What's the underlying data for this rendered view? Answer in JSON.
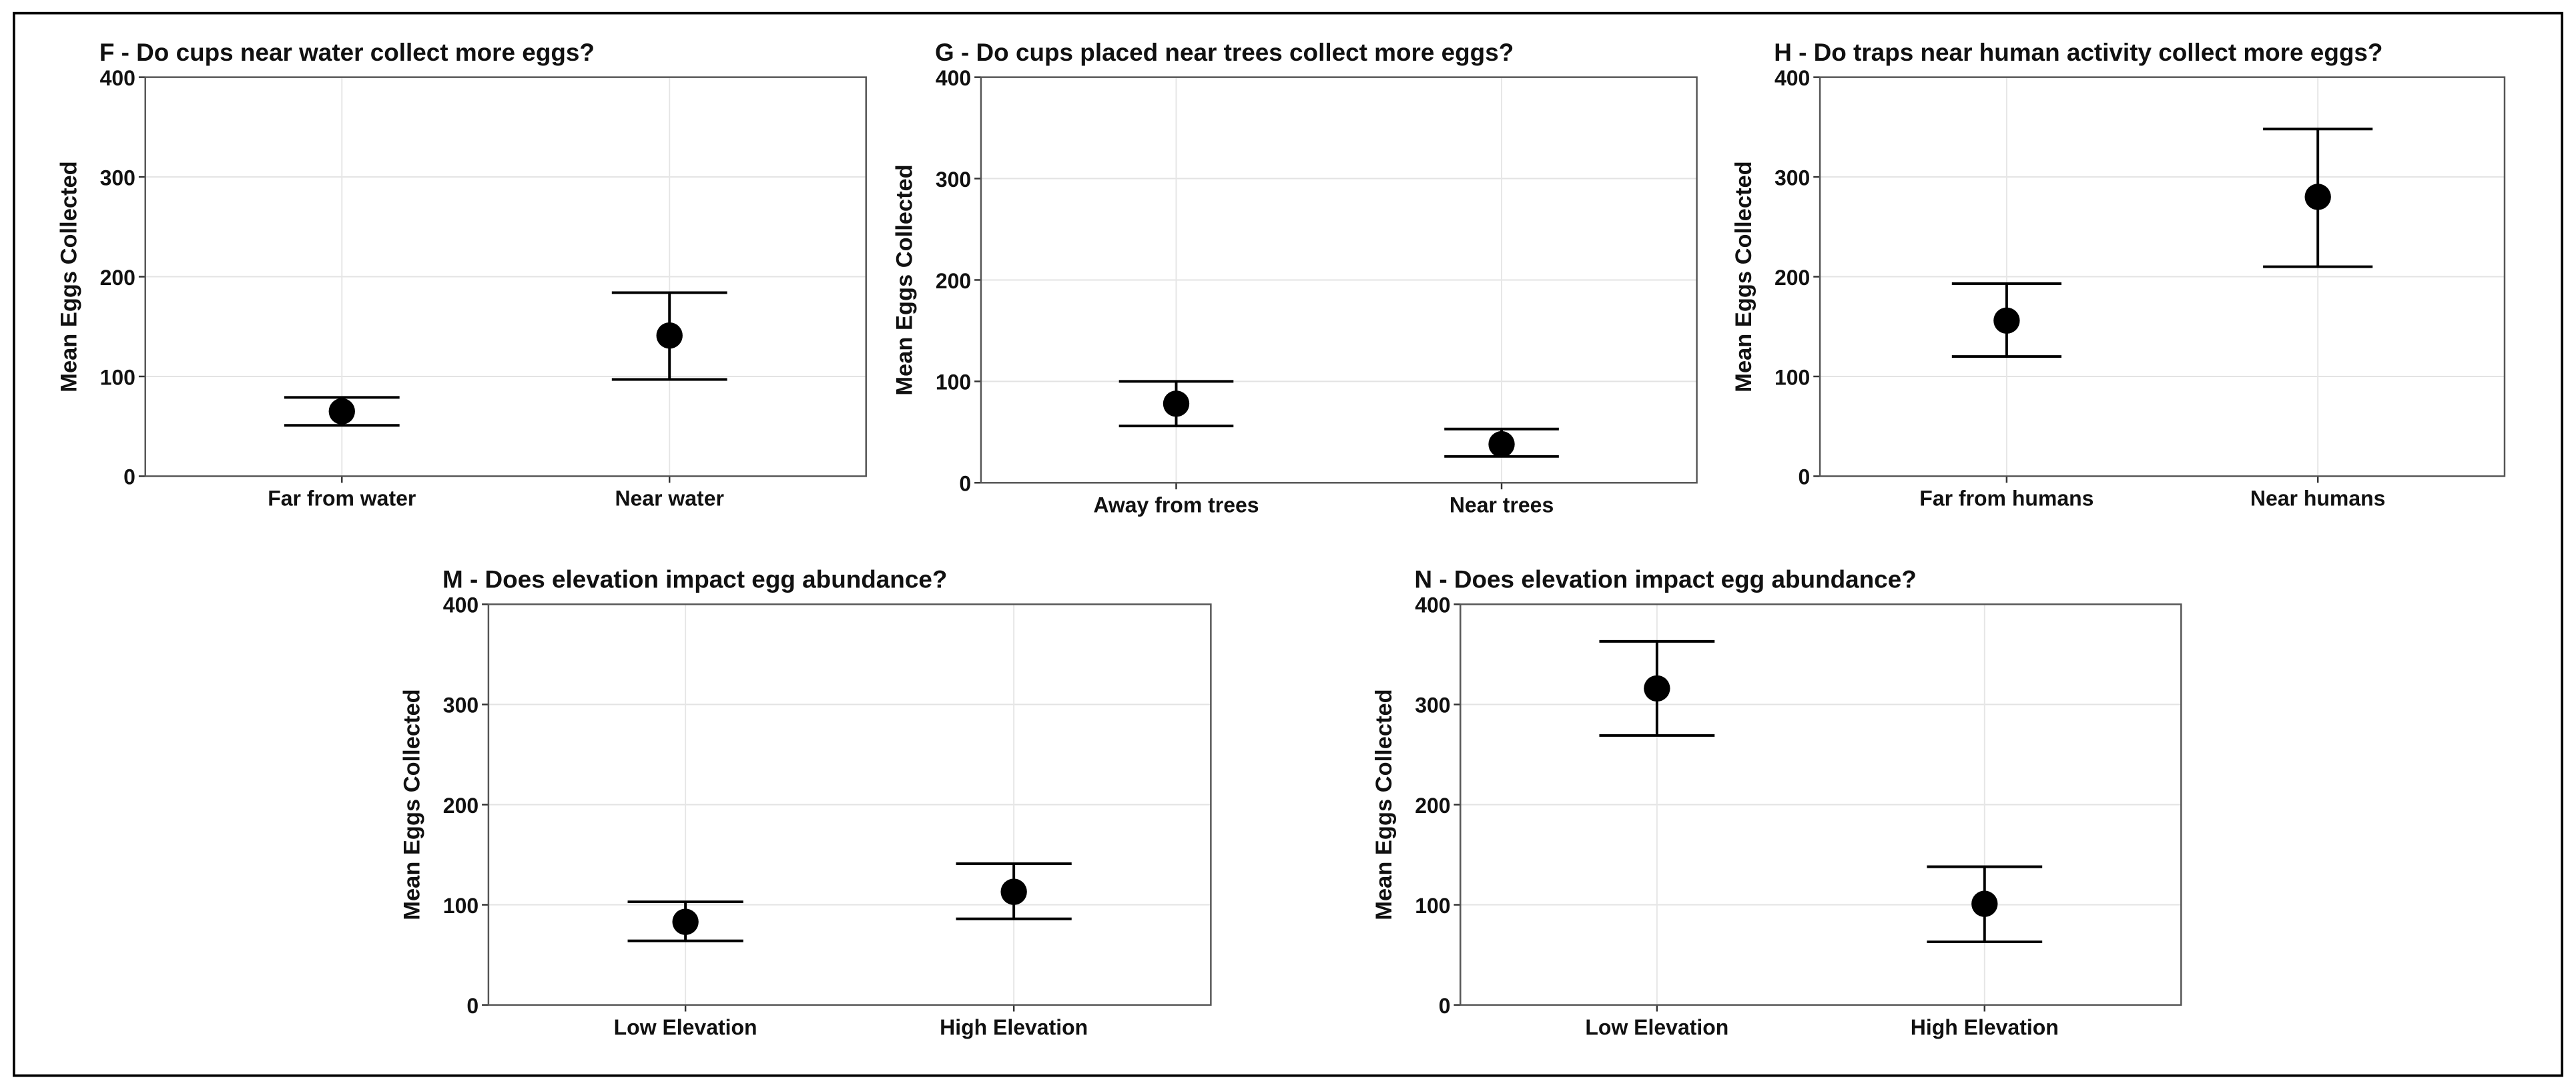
{
  "chart_data": [
    {
      "type": "errorbar",
      "title": "F - Do cups near water collect more eggs?",
      "y_label": "Mean Eggs Collected",
      "categories": [
        "Far from water",
        "Near water"
      ],
      "values": [
        65,
        141
      ],
      "lower": [
        51,
        97
      ],
      "upper": [
        79,
        184
      ],
      "ylim": [
        0,
        400
      ],
      "yticks": [
        0,
        100,
        200,
        300,
        400
      ],
      "grid": true,
      "color": "#000000"
    },
    {
      "type": "errorbar",
      "title": "G - Do cups placed near trees collect more eggs?",
      "y_label": "Mean Eggs Collected",
      "categories": [
        "Away from trees",
        "Near trees"
      ],
      "values": [
        78,
        38
      ],
      "lower": [
        56,
        26
      ],
      "upper": [
        100,
        53
      ],
      "ylim": [
        0,
        400
      ],
      "yticks": [
        0,
        100,
        200,
        300,
        400
      ],
      "grid": true,
      "color": "#000000"
    },
    {
      "type": "errorbar",
      "title": "H - Do traps near human activity collect more eggs?",
      "y_label": "Mean Eggs Collected",
      "categories": [
        "Far from humans",
        "Near humans"
      ],
      "values": [
        156,
        280
      ],
      "lower": [
        120,
        210
      ],
      "upper": [
        193,
        348
      ],
      "ylim": [
        0,
        400
      ],
      "yticks": [
        0,
        100,
        200,
        300,
        400
      ],
      "grid": true,
      "color": "#000000"
    },
    {
      "type": "errorbar",
      "title": "M - Does elevation impact egg abundance?",
      "y_label": "Mean Eggs Collected",
      "categories": [
        "Low Elevation",
        "High Elevation"
      ],
      "values": [
        83,
        113
      ],
      "lower": [
        64,
        86
      ],
      "upper": [
        103,
        141
      ],
      "ylim": [
        0,
        400
      ],
      "yticks": [
        0,
        100,
        200,
        300,
        400
      ],
      "grid": true,
      "color": "#000000"
    },
    {
      "type": "errorbar",
      "title": "N - Does elevation impact egg abundance?",
      "y_label": "Mean Eggs Collected",
      "categories": [
        "Low Elevation",
        "High Elevation"
      ],
      "values": [
        316,
        101
      ],
      "lower": [
        269,
        63
      ],
      "upper": [
        363,
        138
      ],
      "ylim": [
        0,
        400
      ],
      "yticks": [
        0,
        100,
        200,
        300,
        400
      ],
      "grid": true,
      "color": "#000000"
    }
  ]
}
